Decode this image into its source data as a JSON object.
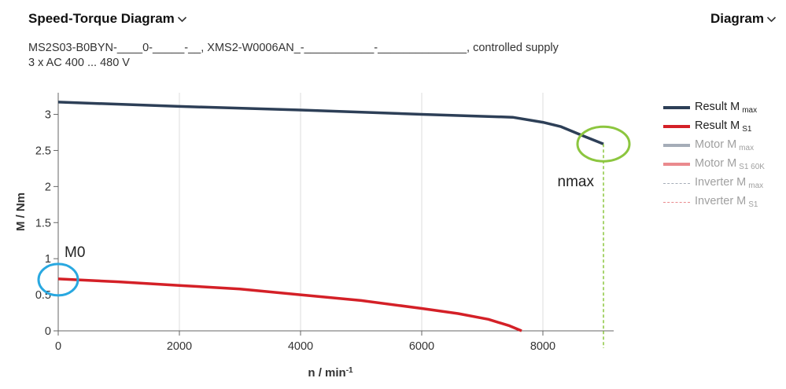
{
  "header": {
    "title": "Speed-Torque Diagram",
    "view_label": "Diagram"
  },
  "subtitle": {
    "line1": "MS2S03-B0BYN-____0-_____-__, XMS2-W0006AN_-___________-______________, controlled supply",
    "line2": "3 x AC 400 ... 480 V"
  },
  "colors": {
    "result_max": "#2d3f57",
    "result_s1": "#d42027",
    "grid": "#dddddd",
    "nmax_line": "#8cc63f",
    "m0_circle": "#29a8e0"
  },
  "legend": [
    {
      "text": "Result M",
      "sub": "max",
      "color": "#2d3f57",
      "style": "solid",
      "text_color": "#222222"
    },
    {
      "text": "Result M",
      "sub": "S1",
      "color": "#d42027",
      "style": "solid",
      "text_color": "#222222"
    },
    {
      "text": "Motor M",
      "sub": "max",
      "color": "#a5adb8",
      "style": "solid",
      "text_color": "#a0a0a0"
    },
    {
      "text": "Motor M",
      "sub": "S1 60K",
      "color": "#ea8a8e",
      "style": "solid",
      "text_color": "#a0a0a0"
    },
    {
      "text": "Inverter M",
      "sub": "max",
      "color": "#a5adb8",
      "style": "dashed",
      "text_color": "#a0a0a0"
    },
    {
      "text": "Inverter M",
      "sub": "S1",
      "color": "#ea8a8e",
      "style": "dashed",
      "text_color": "#a0a0a0"
    }
  ],
  "chart_data": {
    "type": "line",
    "xlabel": "n / min",
    "xlabel_sup": "-1",
    "ylabel": "M / Nm",
    "xlim": [
      0,
      9000
    ],
    "ylim": [
      0,
      3.3
    ],
    "x_ticks": [
      0,
      2000,
      4000,
      6000,
      8000
    ],
    "y_ticks": [
      0,
      0.5,
      1,
      1.5,
      2,
      2.5,
      3
    ],
    "y_tick_labels": [
      "0",
      "0.5",
      "1",
      "1.5",
      "2",
      "2.5",
      "3"
    ],
    "x_tick_labels": [
      "0",
      "2000",
      "4000",
      "6000",
      "8000"
    ],
    "grid": true,
    "series": [
      {
        "name": "Result M max",
        "color": "#2d3f57",
        "points": [
          [
            0,
            3.17
          ],
          [
            2000,
            3.11
          ],
          [
            4000,
            3.06
          ],
          [
            6000,
            3.0
          ],
          [
            7500,
            2.96
          ],
          [
            8000,
            2.89
          ],
          [
            8300,
            2.83
          ],
          [
            8700,
            2.69
          ],
          [
            9000,
            2.59
          ]
        ]
      },
      {
        "name": "Result M S1",
        "color": "#d42027",
        "points": [
          [
            0,
            0.72
          ],
          [
            1000,
            0.68
          ],
          [
            2000,
            0.63
          ],
          [
            3000,
            0.58
          ],
          [
            4000,
            0.5
          ],
          [
            5000,
            0.42
          ],
          [
            6000,
            0.31
          ],
          [
            6600,
            0.24
          ],
          [
            7100,
            0.16
          ],
          [
            7450,
            0.07
          ],
          [
            7650,
            0.0
          ]
        ]
      }
    ],
    "annotations": [
      {
        "label": "nmax",
        "x": 9000,
        "y": 2.59,
        "vline": true,
        "color": "#8cc63f"
      },
      {
        "label": "M0",
        "x": 0,
        "y": 0.72,
        "color": "#29a8e0"
      }
    ]
  }
}
